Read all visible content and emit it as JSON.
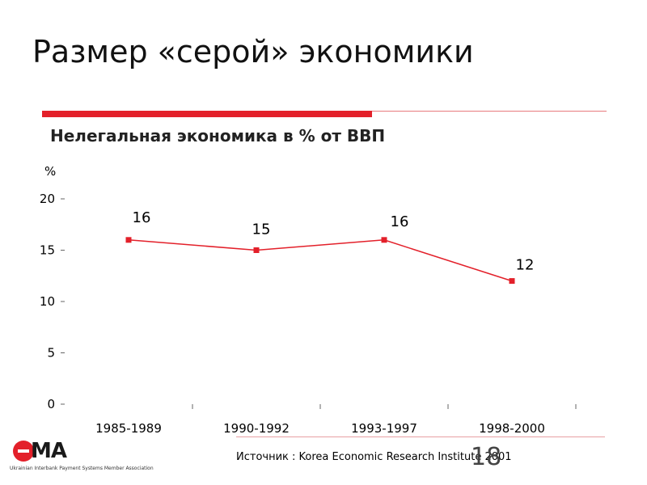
{
  "slide": {
    "title": "Размер «серой» экономики",
    "page_number": "18",
    "source": "Источник : Korea Economic Research Institute 2001"
  },
  "logo": {
    "wordmark": "MA",
    "tagline": "Ukrainian Interbank Payment Systems Member Association"
  },
  "colors": {
    "accent": "#e3202a",
    "series": "#e3202a"
  },
  "chart_data": {
    "type": "line",
    "title": "Нелегальная экономика в % от ВВП",
    "ylabel": "%",
    "categories": [
      "1985-1989",
      "1990-1992",
      "1993-1997",
      "1998-2000"
    ],
    "series": [
      {
        "values": [
          16,
          15,
          16,
          12
        ]
      }
    ],
    "data_labels": [
      "16",
      "15",
      "16",
      "12"
    ],
    "ylim": [
      0,
      20
    ],
    "yticks": [
      0,
      5,
      10,
      15,
      20
    ],
    "grid": false,
    "legend": "none"
  }
}
